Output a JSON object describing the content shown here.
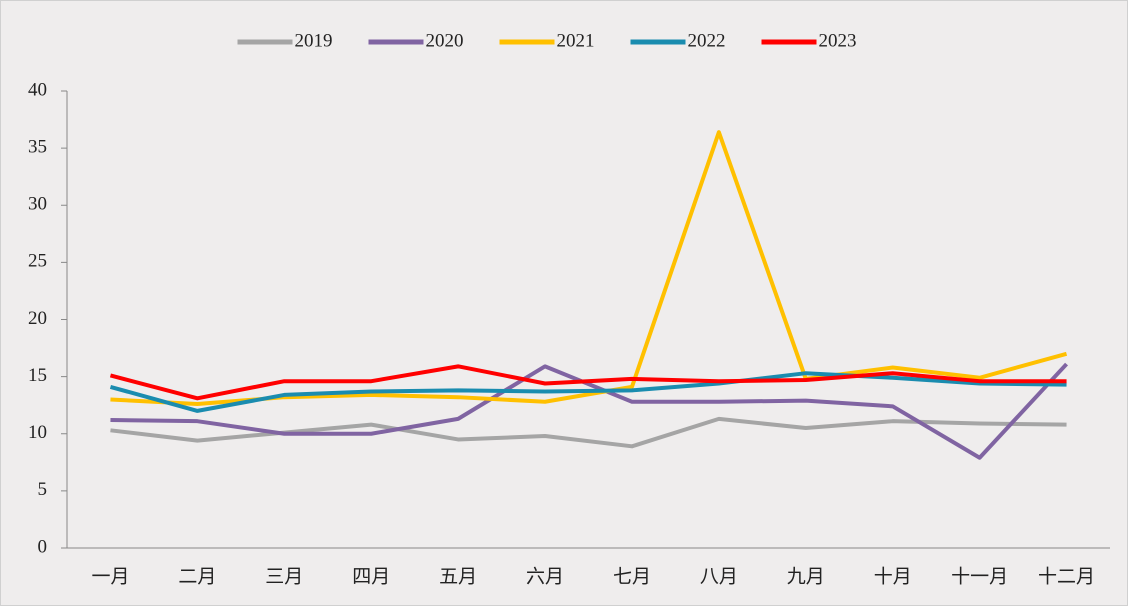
{
  "chart_data": {
    "type": "line",
    "categories": [
      "一月",
      "二月",
      "三月",
      "四月",
      "五月",
      "六月",
      "七月",
      "八月",
      "九月",
      "十月",
      "十一月",
      "十二月"
    ],
    "series": [
      {
        "name": "2019",
        "color": "#a5a5a5",
        "values": [
          10.3,
          9.4,
          10.1,
          10.8,
          9.5,
          9.8,
          8.9,
          11.3,
          10.5,
          11.1,
          10.9,
          10.8
        ]
      },
      {
        "name": "2020",
        "color": "#8064a2",
        "values": [
          11.2,
          11.1,
          10.0,
          10.0,
          11.3,
          15.9,
          12.8,
          12.8,
          12.9,
          12.4,
          7.9,
          16.1
        ]
      },
      {
        "name": "2021",
        "color": "#ffc000",
        "values": [
          13.0,
          12.6,
          13.2,
          13.4,
          13.2,
          12.8,
          14.1,
          36.4,
          14.8,
          15.8,
          14.9,
          17.0
        ]
      },
      {
        "name": "2022",
        "color": "#1a8caf",
        "values": [
          14.1,
          12.0,
          13.4,
          13.7,
          13.8,
          13.7,
          13.8,
          14.4,
          15.3,
          14.9,
          14.4,
          14.3
        ]
      },
      {
        "name": "2023",
        "color": "#ff0000",
        "values": [
          15.1,
          13.1,
          14.6,
          14.6,
          15.9,
          14.4,
          14.8,
          14.6,
          14.7,
          15.3,
          14.6,
          14.6
        ]
      }
    ],
    "ylim": [
      0,
      40
    ],
    "yticks": [
      0,
      5,
      10,
      15,
      20,
      25,
      30,
      35,
      40
    ],
    "legend": "top"
  }
}
